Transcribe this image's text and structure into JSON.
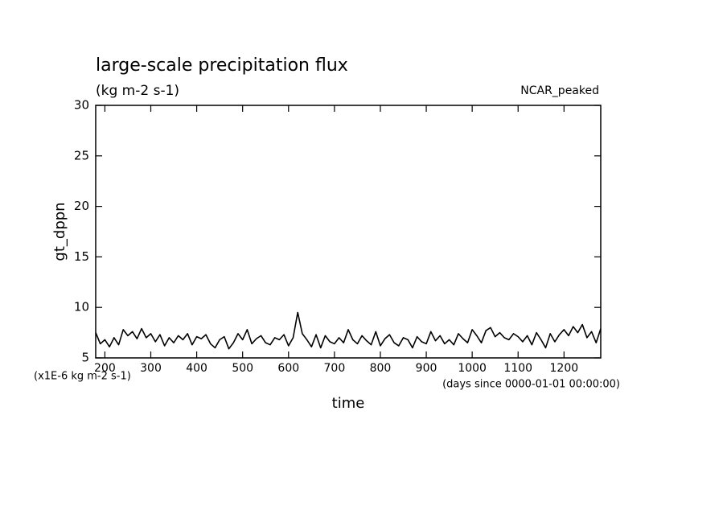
{
  "chart_data": {
    "type": "line",
    "title": "large-scale precipitation flux",
    "subtitle": "(kg m-2 s-1)",
    "annotation": "NCAR_peaked",
    "ylabel": "gt_dppn",
    "yunits": "(x1E-6 kg m-2 s-1)",
    "xlabel": "time",
    "xunits": "(days since 0000-01-01 00:00:00)",
    "color": "#000000",
    "x": [
      180,
      190,
      200,
      210,
      220,
      230,
      240,
      250,
      260,
      270,
      280,
      290,
      300,
      310,
      320,
      330,
      340,
      350,
      360,
      370,
      380,
      390,
      400,
      410,
      420,
      430,
      440,
      450,
      460,
      470,
      480,
      490,
      500,
      510,
      520,
      530,
      540,
      550,
      560,
      570,
      580,
      590,
      600,
      610,
      620,
      630,
      640,
      650,
      660,
      670,
      680,
      690,
      700,
      710,
      720,
      730,
      740,
      750,
      760,
      770,
      780,
      790,
      800,
      810,
      820,
      830,
      840,
      850,
      860,
      870,
      880,
      890,
      900,
      910,
      920,
      930,
      940,
      950,
      960,
      970,
      980,
      990,
      1000,
      1010,
      1020,
      1030,
      1040,
      1050,
      1060,
      1070,
      1080,
      1090,
      1100,
      1110,
      1120,
      1130,
      1140,
      1150,
      1160,
      1170,
      1180,
      1190,
      1200,
      1210,
      1220,
      1230,
      1240,
      1250,
      1260,
      1270,
      1280
    ],
    "values": [
      7.5,
      6.4,
      6.8,
      6.1,
      7.0,
      6.3,
      7.8,
      7.2,
      7.6,
      6.9,
      7.9,
      7.0,
      7.4,
      6.6,
      7.3,
      6.2,
      7.0,
      6.5,
      7.2,
      6.8,
      7.4,
      6.3,
      7.1,
      6.9,
      7.3,
      6.4,
      6.0,
      6.8,
      7.1,
      5.9,
      6.5,
      7.4,
      6.8,
      7.8,
      6.4,
      6.9,
      7.2,
      6.5,
      6.3,
      7.0,
      6.8,
      7.3,
      6.2,
      7.0,
      9.5,
      7.4,
      6.8,
      6.1,
      7.3,
      6.0,
      7.2,
      6.6,
      6.4,
      7.0,
      6.5,
      7.8,
      6.8,
      6.4,
      7.2,
      6.7,
      6.3,
      7.6,
      6.2,
      6.9,
      7.3,
      6.5,
      6.2,
      7.0,
      6.8,
      6.0,
      7.1,
      6.6,
      6.4,
      7.6,
      6.7,
      7.2,
      6.4,
      6.8,
      6.3,
      7.4,
      6.9,
      6.5,
      7.8,
      7.2,
      6.5,
      7.7,
      8.0,
      7.1,
      7.5,
      7.0,
      6.8,
      7.4,
      7.1,
      6.6,
      7.2,
      6.3,
      7.5,
      6.8,
      6.0,
      7.4,
      6.6,
      7.3,
      7.8,
      7.2,
      8.1,
      7.5,
      8.3,
      7.0,
      7.6,
      6.5,
      7.9
    ],
    "xlim": [
      180,
      1280
    ],
    "xticks": [
      200,
      300,
      400,
      500,
      600,
      700,
      800,
      900,
      1000,
      1100,
      1200
    ],
    "ylim": [
      5,
      30
    ],
    "yticks": [
      5,
      10,
      15,
      20,
      25,
      30
    ]
  }
}
